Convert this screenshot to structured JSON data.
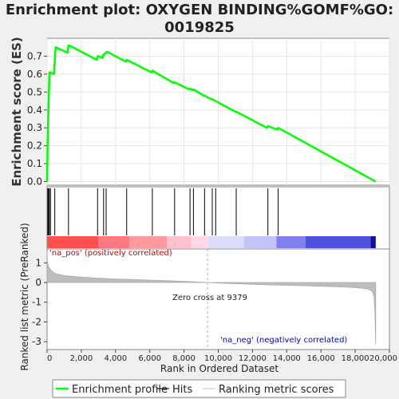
{
  "chart_data": {
    "type": "line",
    "title_line1": "Enrichment plot: OXYGEN BINDING%GOMF%GO:",
    "title_line2": "0019825",
    "top_panel": {
      "ylabel": "Enrichment score (ES)",
      "ylim": [
        -0.02,
        0.8
      ],
      "yticks": [
        "0.0",
        "0.1",
        "0.2",
        "0.3",
        "0.4",
        "0.5",
        "0.6",
        "0.7"
      ],
      "ytick_values": [
        0.0,
        0.1,
        0.2,
        0.3,
        0.4,
        0.5,
        0.6,
        0.7
      ],
      "series": [
        {
          "name": "Enrichment profile",
          "color": "#00ff00",
          "x": [
            0,
            30,
            60,
            100,
            140,
            400,
            450,
            500,
            1200,
            1250,
            1300,
            2900,
            2950,
            3000,
            3250,
            3300,
            3450,
            3500,
            4600,
            4650,
            6100,
            6150,
            7400,
            7450,
            8300,
            8350,
            8500,
            8550,
            9150,
            9200,
            9600,
            9650,
            11000,
            11050,
            12850,
            12900,
            13450,
            13500,
            19200
          ],
          "y": [
            0.0,
            0.2,
            0.33,
            0.48,
            0.61,
            0.6,
            0.68,
            0.75,
            0.72,
            0.76,
            0.76,
            0.68,
            0.7,
            0.7,
            0.69,
            0.71,
            0.72,
            0.725,
            0.67,
            0.68,
            0.61,
            0.62,
            0.55,
            0.555,
            0.515,
            0.52,
            0.51,
            0.515,
            0.48,
            0.48,
            0.46,
            0.46,
            0.39,
            0.39,
            0.3,
            0.31,
            0.29,
            0.3,
            0.0
          ]
        }
      ]
    },
    "hits": {
      "positions": [
        40,
        90,
        130,
        200,
        450,
        1250,
        2950,
        3300,
        3450,
        4650,
        6150,
        7450,
        8350,
        8550,
        9200,
        9650,
        9850,
        11050,
        12900,
        13500
      ]
    },
    "colorbar": {
      "segments": [
        {
          "start": 0,
          "end": 3000,
          "color": "#ff5050"
        },
        {
          "start": 3000,
          "end": 4800,
          "color": "#ff7880"
        },
        {
          "start": 4800,
          "end": 7000,
          "color": "#ff9aa0"
        },
        {
          "start": 7000,
          "end": 8400,
          "color": "#ffc0d0"
        },
        {
          "start": 8400,
          "end": 9379,
          "color": "#ffd8e8"
        },
        {
          "start": 9379,
          "end": 11500,
          "color": "#dcdcfa"
        },
        {
          "start": 11500,
          "end": 13400,
          "color": "#c4c4f8"
        },
        {
          "start": 13400,
          "end": 15100,
          "color": "#8080f0"
        },
        {
          "start": 15100,
          "end": 18900,
          "color": "#5050e0"
        },
        {
          "start": 18900,
          "end": 19200,
          "color": "#1010a0"
        }
      ]
    },
    "bottom_panel": {
      "ylabel": "Ranked list metric (PreRanked)",
      "ylim": [
        -3.4,
        1.7
      ],
      "yticks": [
        "1",
        "0",
        "-1",
        "-2",
        "-3"
      ],
      "ytick_values": [
        1,
        0,
        -1,
        -2,
        -3
      ],
      "metric_x": [
        0,
        20,
        60,
        120,
        250,
        500,
        1000,
        2000,
        3000,
        4000,
        5000,
        6000,
        7000,
        8000,
        9379,
        10000,
        11000,
        12000,
        13000,
        14000,
        15000,
        16000,
        17000,
        18000,
        18500,
        18800,
        19000,
        19100,
        19150,
        19200
      ],
      "metric_y": [
        1.6,
        1.05,
        0.9,
        0.75,
        0.6,
        0.45,
        0.35,
        0.27,
        0.22,
        0.18,
        0.15,
        0.12,
        0.09,
        0.06,
        0.0,
        -0.03,
        -0.06,
        -0.09,
        -0.12,
        -0.14,
        -0.16,
        -0.19,
        -0.22,
        -0.26,
        -0.3,
        -0.35,
        -0.45,
        -0.7,
        -1.5,
        -3.1
      ],
      "pos_label": "'na_pos' (positively correlated)",
      "neg_label": "'na_neg' (negatively correlated)",
      "zero_cross_label": "Zero cross at 9379",
      "zero_cross": 9379
    },
    "xaxis": {
      "xlabel": "Rank in Ordered Dataset",
      "xlim": [
        0,
        20000
      ],
      "xticks": [
        "0",
        "2,000",
        "4,000",
        "6,000",
        "8,000",
        "10,000",
        "12,000",
        "14,000",
        "16,000",
        "18,000",
        "20,000"
      ],
      "xtick_values": [
        0,
        2000,
        4000,
        6000,
        8000,
        10000,
        12000,
        14000,
        16000,
        18000,
        20000
      ]
    },
    "legend": [
      {
        "label": "Enrichment profile",
        "color": "#00ff00"
      },
      {
        "label": "Hits",
        "color": "#000000"
      },
      {
        "label": "Ranking metric scores",
        "color": "#c0c0c0"
      }
    ]
  }
}
